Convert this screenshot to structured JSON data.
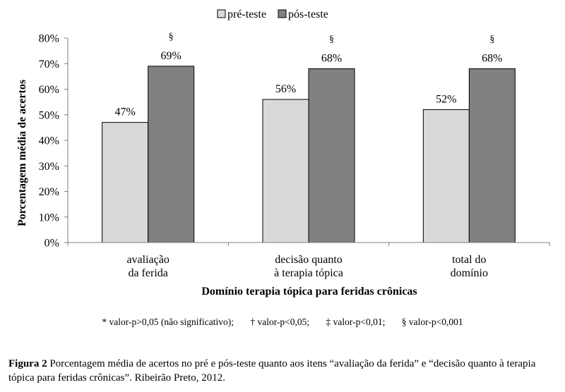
{
  "chart_data": {
    "type": "bar",
    "title": "",
    "xlabel": "Domínio terapia tópica para feridas crônicas",
    "ylabel": "Porcentagem média de acertos",
    "ylim": [
      0,
      80
    ],
    "yticks": [
      "0%",
      "10%",
      "20%",
      "30%",
      "40%",
      "50%",
      "60%",
      "70%",
      "80%"
    ],
    "categories": [
      [
        "avaliação",
        "da ferida"
      ],
      [
        "decisão quanto",
        "à terapia tópica"
      ],
      [
        "total do",
        "domínio"
      ]
    ],
    "series": [
      {
        "name": "pré-teste",
        "color": "#d9d9d9",
        "values": [
          47,
          56,
          52
        ],
        "labels": [
          "47%",
          "56%",
          "52%"
        ],
        "marks": [
          "",
          "",
          ""
        ]
      },
      {
        "name": "pós-teste",
        "color": "#808080",
        "values": [
          69,
          68,
          68
        ],
        "labels": [
          "69%",
          "68%",
          "68%"
        ],
        "marks": [
          "§",
          "§",
          "§"
        ]
      }
    ],
    "legend_position": "top-center",
    "grid": false
  },
  "notes": [
    "* valor-p>0,05 (não significativo);",
    "† valor-p<0,05;",
    "‡ valor-p<0,01;",
    "§ valor-p<0,001"
  ],
  "caption": {
    "label": "Figura 2",
    "text": " Porcentagem média de acertos no pré e pós-teste quanto aos itens “avaliação da ferida” e “decisão quanto à terapia tópica para feridas crônicas”. Ribeirão Preto, 2012."
  }
}
